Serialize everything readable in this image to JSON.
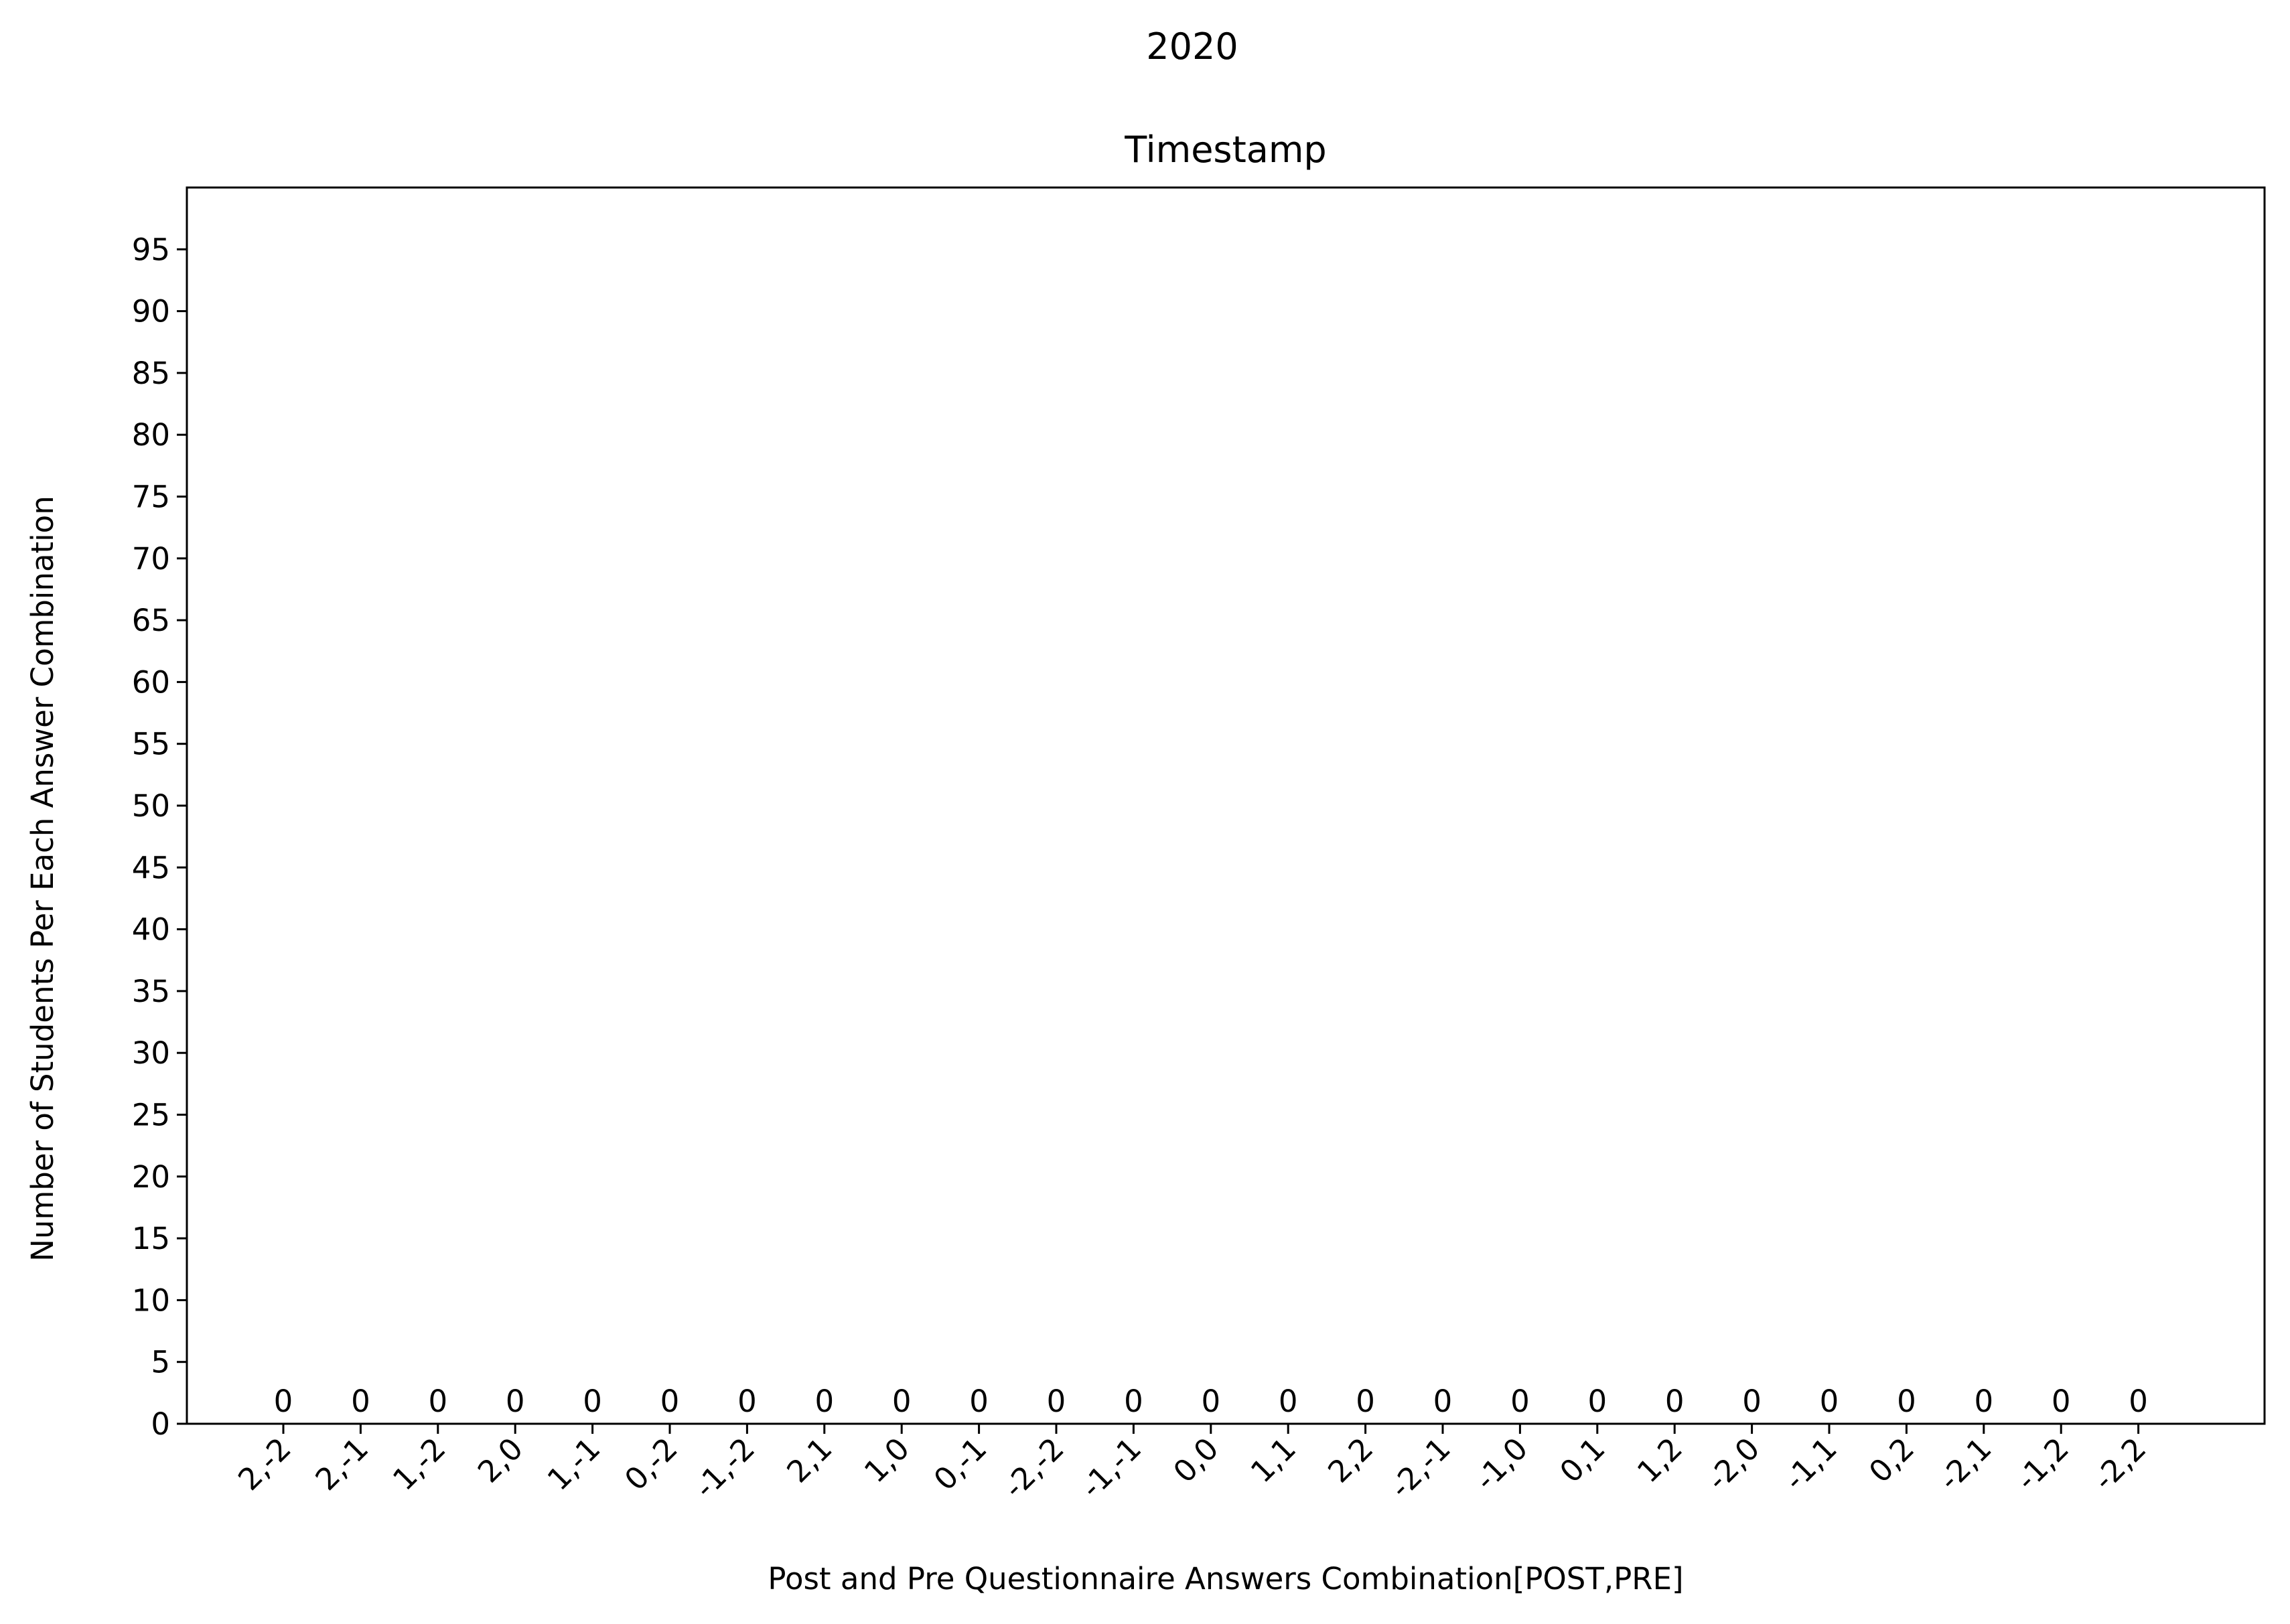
{
  "figure": {
    "suptitle": "2020"
  },
  "chart_data": {
    "type": "bar",
    "title": "Timestamp",
    "xlabel": "Post and Pre Questionnaire Answers Combination[POST,PRE]",
    "ylabel": "Number of Students Per Each Answer Combination",
    "categories": [
      "2,-2",
      "2,-1",
      "1,-2",
      "2,0",
      "1,-1",
      "0,-2",
      "-1,-2",
      "2,1",
      "1,0",
      "0,-1",
      "-2,-2",
      "-1,-1",
      "0,0",
      "1,1",
      "2,2",
      "-2,-1",
      "-1,0",
      "0,1",
      "1,2",
      "-2,0",
      "-1,1",
      "0,2",
      "-2,1",
      "-1,2",
      "-2,2"
    ],
    "values": [
      0,
      0,
      0,
      0,
      0,
      0,
      0,
      0,
      0,
      0,
      0,
      0,
      0,
      0,
      0,
      0,
      0,
      0,
      0,
      0,
      0,
      0,
      0,
      0,
      0
    ],
    "data_labels": [
      "0",
      "0",
      "0",
      "0",
      "0",
      "0",
      "0",
      "0",
      "0",
      "0",
      "0",
      "0",
      "0",
      "0",
      "0",
      "0",
      "0",
      "0",
      "0",
      "0",
      "0",
      "0",
      "0",
      "0",
      "0"
    ],
    "ylim": [
      0,
      100
    ],
    "yticks": [
      0,
      5,
      10,
      15,
      20,
      25,
      30,
      35,
      40,
      45,
      50,
      55,
      60,
      65,
      70,
      75,
      80,
      85,
      90,
      95
    ],
    "grid": false,
    "legend": "none",
    "colors": {
      "bar": "#1f77b4",
      "axis": "#000000",
      "background": "#ffffff"
    }
  }
}
